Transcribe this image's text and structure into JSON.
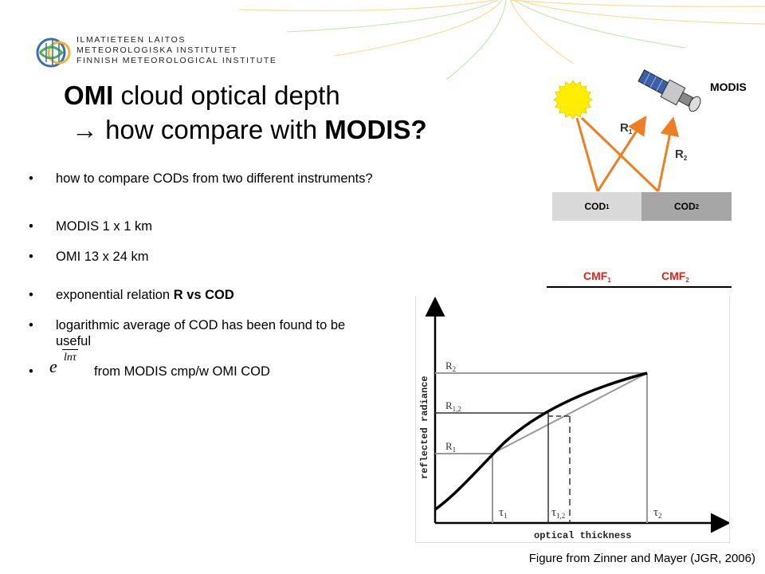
{
  "logo": {
    "lines": [
      "ILMATIETEEN LAITOS",
      "METEOROLOGISKA INSTITUTET",
      "FINNISH METEOROLOGICAL INSTITUTE"
    ]
  },
  "title": {
    "line1_bold": "OMI",
    "line1_rest": " cloud optical depth",
    "line2_arrow": "→",
    "line2_rest": " how compare with ",
    "line2_bold": "MODIS?"
  },
  "bullets": {
    "b1": "how to compare CODs from two different instruments?",
    "b2": "MODIS 1 x 1 km",
    "b3": "OMI 13 x 24 km",
    "b4_pre": "exponential relation ",
    "b4_bold": "R vs COD",
    "b5": "logarithmic average of COD has been found to be useful",
    "b6": "from MODIS cmp/w OMI COD",
    "formula_base": "e",
    "formula_exp": "lnτ"
  },
  "diagram": {
    "modis_label": "MODIS",
    "r1": "R",
    "r1_sub": "1",
    "r2": "R",
    "r2_sub": "2",
    "cod1": "COD",
    "cod1_sub": "1",
    "cod2": "COD",
    "cod2_sub": "2",
    "cmf1": "CMF",
    "cmf1_sub": "1",
    "cmf2": "CMF",
    "cmf2_sub": "2",
    "colors": {
      "arrow": "#ef7d22",
      "sun": "#ffee00",
      "cmf": "#e2231a",
      "cod1_bg": "#d9d9d9",
      "cod2_bg": "#a6a6a6"
    }
  },
  "figure": {
    "ylabel": "reflected radiance",
    "xlabel": "optical thickness",
    "y_r2": "R",
    "y_r2_sub": "2",
    "y_r12": "R",
    "y_r12_sub": "1,2",
    "y_r1": "R",
    "y_r1_sub": "1",
    "x_t1": "τ",
    "x_t1_sub": "1",
    "x_t12": "τ",
    "x_t12_sub": "1,2",
    "x_t2": "τ",
    "x_t2_sub": "2"
  },
  "caption": "Figure from Zinner and Mayer (JGR, 2006)"
}
